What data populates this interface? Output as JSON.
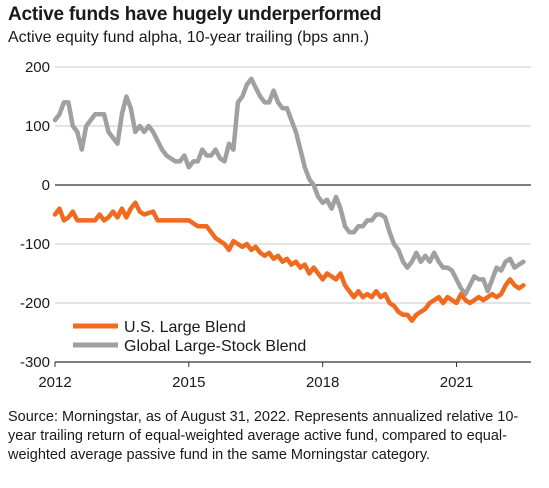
{
  "header": {
    "title": "Active funds have hugely underperformed",
    "subtitle": "Active equity fund alpha, 10-year trailing (bps ann.)"
  },
  "footer": {
    "source": "Source: Morningstar, as of August 31, 2022. Represents annualized relative 10-year trailing return of equal-weighted average active fund, compared to equal-weighted average passive fund in the same Morningstar category."
  },
  "chart_data": {
    "type": "line",
    "title": "Active funds have hugely underperformed",
    "subtitle": "Active equity fund alpha, 10-year trailing (bps ann.)",
    "xlabel": "",
    "ylabel": "",
    "xlim": [
      2012,
      2022.67
    ],
    "ylim": [
      -300,
      200
    ],
    "x_ticks": [
      2012,
      2015,
      2018,
      2021
    ],
    "x_tick_labels": [
      "2012",
      "2015",
      "2018",
      "2021"
    ],
    "y_ticks": [
      200,
      100,
      0,
      -100,
      -200,
      -300
    ],
    "y_tick_labels": [
      "200",
      "100",
      "0",
      "-100",
      "-200",
      "-300"
    ],
    "grid": "horizontal",
    "legend_position": "bottom-left",
    "series": [
      {
        "name": "U.S. Large Blend",
        "color": "#f06a20",
        "points": [
          [
            2012.0,
            -50
          ],
          [
            2012.1,
            -40
          ],
          [
            2012.2,
            -60
          ],
          [
            2012.3,
            -55
          ],
          [
            2012.4,
            -45
          ],
          [
            2012.5,
            -60
          ],
          [
            2012.7,
            -60
          ],
          [
            2012.9,
            -60
          ],
          [
            2013.0,
            -50
          ],
          [
            2013.1,
            -60
          ],
          [
            2013.2,
            -55
          ],
          [
            2013.3,
            -45
          ],
          [
            2013.4,
            -55
          ],
          [
            2013.5,
            -40
          ],
          [
            2013.6,
            -55
          ],
          [
            2013.7,
            -40
          ],
          [
            2013.8,
            -30
          ],
          [
            2013.9,
            -45
          ],
          [
            2014.0,
            -50
          ],
          [
            2014.2,
            -45
          ],
          [
            2014.3,
            -60
          ],
          [
            2014.5,
            -60
          ],
          [
            2014.7,
            -60
          ],
          [
            2015.0,
            -60
          ],
          [
            2015.2,
            -70
          ],
          [
            2015.4,
            -70
          ],
          [
            2015.5,
            -80
          ],
          [
            2015.6,
            -90
          ],
          [
            2015.7,
            -95
          ],
          [
            2015.8,
            -100
          ],
          [
            2015.9,
            -110
          ],
          [
            2016.0,
            -95
          ],
          [
            2016.1,
            -100
          ],
          [
            2016.2,
            -105
          ],
          [
            2016.3,
            -100
          ],
          [
            2016.4,
            -110
          ],
          [
            2016.5,
            -105
          ],
          [
            2016.6,
            -115
          ],
          [
            2016.7,
            -120
          ],
          [
            2016.8,
            -115
          ],
          [
            2016.9,
            -125
          ],
          [
            2017.0,
            -120
          ],
          [
            2017.1,
            -130
          ],
          [
            2017.2,
            -125
          ],
          [
            2017.3,
            -135
          ],
          [
            2017.4,
            -130
          ],
          [
            2017.5,
            -140
          ],
          [
            2017.6,
            -135
          ],
          [
            2017.7,
            -150
          ],
          [
            2017.8,
            -140
          ],
          [
            2017.9,
            -150
          ],
          [
            2018.0,
            -160
          ],
          [
            2018.1,
            -150
          ],
          [
            2018.2,
            -155
          ],
          [
            2018.3,
            -160
          ],
          [
            2018.4,
            -150
          ],
          [
            2018.5,
            -170
          ],
          [
            2018.6,
            -180
          ],
          [
            2018.7,
            -190
          ],
          [
            2018.8,
            -180
          ],
          [
            2018.9,
            -190
          ],
          [
            2019.0,
            -185
          ],
          [
            2019.1,
            -190
          ],
          [
            2019.2,
            -180
          ],
          [
            2019.3,
            -190
          ],
          [
            2019.4,
            -185
          ],
          [
            2019.5,
            -200
          ],
          [
            2019.6,
            -205
          ],
          [
            2019.7,
            -215
          ],
          [
            2019.8,
            -220
          ],
          [
            2019.9,
            -220
          ],
          [
            2020.0,
            -230
          ],
          [
            2020.1,
            -220
          ],
          [
            2020.3,
            -210
          ],
          [
            2020.4,
            -200
          ],
          [
            2020.5,
            -195
          ],
          [
            2020.6,
            -190
          ],
          [
            2020.7,
            -200
          ],
          [
            2020.8,
            -190
          ],
          [
            2020.9,
            -195
          ],
          [
            2021.0,
            -200
          ],
          [
            2021.1,
            -185
          ],
          [
            2021.2,
            -195
          ],
          [
            2021.3,
            -200
          ],
          [
            2021.4,
            -195
          ],
          [
            2021.5,
            -190
          ],
          [
            2021.6,
            -195
          ],
          [
            2021.7,
            -190
          ],
          [
            2021.8,
            -185
          ],
          [
            2021.9,
            -190
          ],
          [
            2022.0,
            -185
          ],
          [
            2022.1,
            -170
          ],
          [
            2022.2,
            -160
          ],
          [
            2022.3,
            -170
          ],
          [
            2022.4,
            -175
          ],
          [
            2022.5,
            -170
          ]
        ]
      },
      {
        "name": "Global Large-Stock Blend",
        "color": "#a0a0a0",
        "points": [
          [
            2012.0,
            110
          ],
          [
            2012.1,
            120
          ],
          [
            2012.2,
            140
          ],
          [
            2012.3,
            140
          ],
          [
            2012.4,
            100
          ],
          [
            2012.5,
            90
          ],
          [
            2012.6,
            60
          ],
          [
            2012.7,
            100
          ],
          [
            2012.8,
            110
          ],
          [
            2012.9,
            120
          ],
          [
            2013.0,
            120
          ],
          [
            2013.1,
            120
          ],
          [
            2013.2,
            90
          ],
          [
            2013.3,
            80
          ],
          [
            2013.4,
            70
          ],
          [
            2013.5,
            120
          ],
          [
            2013.6,
            150
          ],
          [
            2013.7,
            130
          ],
          [
            2013.8,
            90
          ],
          [
            2013.9,
            100
          ],
          [
            2014.0,
            90
          ],
          [
            2014.1,
            100
          ],
          [
            2014.2,
            90
          ],
          [
            2014.3,
            75
          ],
          [
            2014.4,
            60
          ],
          [
            2014.5,
            50
          ],
          [
            2014.6,
            45
          ],
          [
            2014.7,
            40
          ],
          [
            2014.8,
            40
          ],
          [
            2014.9,
            50
          ],
          [
            2015.0,
            30
          ],
          [
            2015.1,
            40
          ],
          [
            2015.2,
            40
          ],
          [
            2015.3,
            60
          ],
          [
            2015.4,
            50
          ],
          [
            2015.5,
            50
          ],
          [
            2015.6,
            60
          ],
          [
            2015.7,
            45
          ],
          [
            2015.8,
            40
          ],
          [
            2015.9,
            70
          ],
          [
            2016.0,
            60
          ],
          [
            2016.1,
            140
          ],
          [
            2016.2,
            150
          ],
          [
            2016.3,
            170
          ],
          [
            2016.4,
            180
          ],
          [
            2016.5,
            165
          ],
          [
            2016.6,
            150
          ],
          [
            2016.7,
            140
          ],
          [
            2016.8,
            140
          ],
          [
            2016.9,
            160
          ],
          [
            2017.0,
            140
          ],
          [
            2017.1,
            130
          ],
          [
            2017.2,
            130
          ],
          [
            2017.3,
            110
          ],
          [
            2017.4,
            90
          ],
          [
            2017.5,
            60
          ],
          [
            2017.6,
            30
          ],
          [
            2017.7,
            10
          ],
          [
            2017.8,
            0
          ],
          [
            2017.9,
            -20
          ],
          [
            2018.0,
            -30
          ],
          [
            2018.1,
            -25
          ],
          [
            2018.2,
            -40
          ],
          [
            2018.3,
            -20
          ],
          [
            2018.4,
            -40
          ],
          [
            2018.5,
            -70
          ],
          [
            2018.6,
            -80
          ],
          [
            2018.7,
            -80
          ],
          [
            2018.8,
            -70
          ],
          [
            2018.9,
            -70
          ],
          [
            2019.0,
            -60
          ],
          [
            2019.1,
            -60
          ],
          [
            2019.2,
            -50
          ],
          [
            2019.3,
            -50
          ],
          [
            2019.4,
            -55
          ],
          [
            2019.5,
            -80
          ],
          [
            2019.6,
            -100
          ],
          [
            2019.7,
            -110
          ],
          [
            2019.8,
            -130
          ],
          [
            2019.9,
            -140
          ],
          [
            2020.0,
            -130
          ],
          [
            2020.1,
            -115
          ],
          [
            2020.2,
            -130
          ],
          [
            2020.3,
            -120
          ],
          [
            2020.4,
            -130
          ],
          [
            2020.5,
            -115
          ],
          [
            2020.6,
            -130
          ],
          [
            2020.7,
            -140
          ],
          [
            2020.8,
            -140
          ],
          [
            2020.9,
            -145
          ],
          [
            2021.0,
            -160
          ],
          [
            2021.1,
            -175
          ],
          [
            2021.2,
            -185
          ],
          [
            2021.3,
            -170
          ],
          [
            2021.4,
            -155
          ],
          [
            2021.5,
            -160
          ],
          [
            2021.6,
            -160
          ],
          [
            2021.7,
            -180
          ],
          [
            2021.8,
            -160
          ],
          [
            2021.9,
            -140
          ],
          [
            2022.0,
            -145
          ],
          [
            2022.1,
            -130
          ],
          [
            2022.2,
            -125
          ],
          [
            2022.3,
            -140
          ],
          [
            2022.4,
            -135
          ],
          [
            2022.5,
            -130
          ]
        ]
      }
    ]
  }
}
